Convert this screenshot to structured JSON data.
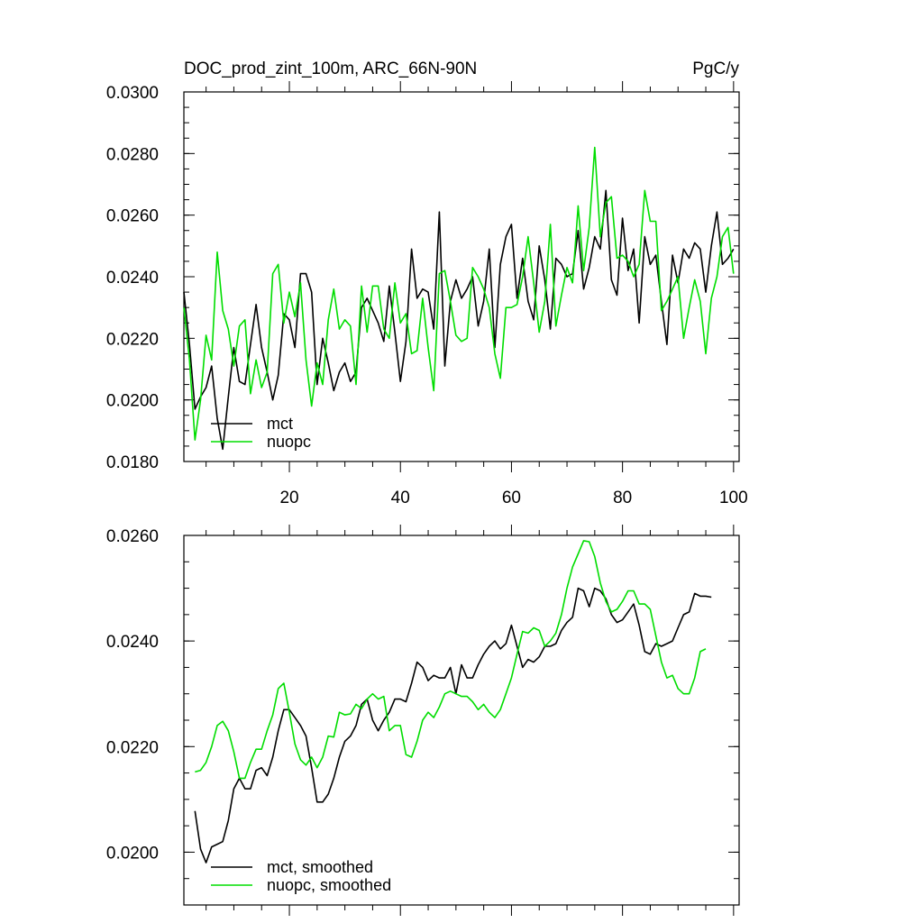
{
  "colors": {
    "mct": "#000000",
    "nuopc": "#00dd00",
    "axis": "#000000"
  },
  "chart_data": [
    {
      "type": "line",
      "title": "DOC_prod_zint_100m, ARC_66N-90N",
      "units": "PgC/y",
      "xlabel": "",
      "ylabel": "",
      "xlim": [
        1,
        101
      ],
      "ylim": [
        0.018,
        0.03
      ],
      "xticks": [
        20,
        40,
        60,
        80,
        100
      ],
      "xtick_labels": [
        "20",
        "40",
        "60",
        "80",
        "100"
      ],
      "yticks": [
        0.018,
        0.02,
        0.022,
        0.024,
        0.026,
        0.028,
        0.03
      ],
      "ytick_labels": [
        "0.0180",
        "0.0200",
        "0.0220",
        "0.0240",
        "0.0260",
        "0.0280",
        "0.0300"
      ],
      "legend_position": "bottom-left",
      "x_start": 1,
      "series": [
        {
          "name": "mct",
          "values": [
            0.0235,
            0.0218,
            0.0197,
            0.0201,
            0.0204,
            0.0211,
            0.0194,
            0.0184,
            0.0201,
            0.0217,
            0.0206,
            0.0205,
            0.0218,
            0.0231,
            0.0217,
            0.0209,
            0.02,
            0.0208,
            0.0228,
            0.0226,
            0.0217,
            0.0241,
            0.0241,
            0.0235,
            0.0205,
            0.022,
            0.0212,
            0.0203,
            0.0209,
            0.0212,
            0.0206,
            0.0209,
            0.023,
            0.0233,
            0.0229,
            0.0225,
            0.0219,
            0.0237,
            0.0222,
            0.0206,
            0.0219,
            0.0249,
            0.0233,
            0.0236,
            0.0235,
            0.0223,
            0.0261,
            0.0211,
            0.0232,
            0.0239,
            0.0233,
            0.0236,
            0.024,
            0.0224,
            0.0232,
            0.0249,
            0.0217,
            0.0244,
            0.0253,
            0.0257,
            0.0233,
            0.0246,
            0.0232,
            0.0226,
            0.025,
            0.0239,
            0.0223,
            0.0246,
            0.0244,
            0.024,
            0.0241,
            0.0255,
            0.0236,
            0.0243,
            0.0253,
            0.0249,
            0.0268,
            0.0239,
            0.0234,
            0.0259,
            0.0242,
            0.0249,
            0.0225,
            0.0253,
            0.0244,
            0.0247,
            0.0232,
            0.0218,
            0.0247,
            0.0238,
            0.0249,
            0.0246,
            0.0251,
            0.0249,
            0.0235,
            0.025,
            0.0261,
            0.0244,
            0.0246,
            0.0249
          ]
        },
        {
          "name": "nuopc",
          "values": [
            0.023,
            0.0213,
            0.0187,
            0.02,
            0.0221,
            0.0213,
            0.0248,
            0.0229,
            0.0223,
            0.0211,
            0.0224,
            0.0226,
            0.0202,
            0.0213,
            0.0204,
            0.0209,
            0.0241,
            0.0244,
            0.0225,
            0.0235,
            0.0227,
            0.0238,
            0.0213,
            0.0198,
            0.0212,
            0.0205,
            0.0226,
            0.0236,
            0.0223,
            0.0226,
            0.0224,
            0.0205,
            0.0237,
            0.0222,
            0.0237,
            0.0237,
            0.0223,
            0.022,
            0.0238,
            0.0225,
            0.0228,
            0.0215,
            0.0216,
            0.0233,
            0.0217,
            0.0203,
            0.0241,
            0.0242,
            0.0232,
            0.0221,
            0.0219,
            0.022,
            0.0243,
            0.024,
            0.0236,
            0.023,
            0.0215,
            0.0207,
            0.023,
            0.023,
            0.0231,
            0.024,
            0.0253,
            0.0238,
            0.0222,
            0.0232,
            0.0257,
            0.0224,
            0.0234,
            0.0243,
            0.0238,
            0.0263,
            0.0242,
            0.0256,
            0.0282,
            0.0253,
            0.0264,
            0.0266,
            0.0246,
            0.0247,
            0.0245,
            0.024,
            0.0244,
            0.0268,
            0.0258,
            0.0258,
            0.0229,
            0.0232,
            0.0236,
            0.024,
            0.022,
            0.023,
            0.0239,
            0.0232,
            0.0215,
            0.0233,
            0.024,
            0.0253,
            0.0256,
            0.0241
          ]
        }
      ]
    },
    {
      "type": "line",
      "title": "",
      "xlabel": "",
      "ylabel": "",
      "xlim": [
        1,
        101
      ],
      "ylim": [
        0.019,
        0.026
      ],
      "xticks": [
        20,
        40,
        60,
        80,
        100
      ],
      "xtick_labels": [],
      "yticks": [
        0.02,
        0.022,
        0.024,
        0.026
      ],
      "ytick_labels": [
        "0.0200",
        "0.0220",
        "0.0240",
        "0.0260"
      ],
      "legend_position": "bottom-left",
      "x_start": 3,
      "series": [
        {
          "name": "mct, smoothed",
          "values": [
            0.02078,
            0.02006,
            0.0198,
            0.0201,
            0.02015,
            0.0202,
            0.0206,
            0.0212,
            0.0214,
            0.0212,
            0.0212,
            0.02155,
            0.0216,
            0.02145,
            0.0218,
            0.0223,
            0.0227,
            0.0227,
            0.02255,
            0.0224,
            0.0222,
            0.0216,
            0.02095,
            0.02095,
            0.0211,
            0.0214,
            0.0218,
            0.0221,
            0.0222,
            0.0224,
            0.0228,
            0.0229,
            0.0225,
            0.0223,
            0.0225,
            0.02265,
            0.0229,
            0.0229,
            0.02285,
            0.0232,
            0.0236,
            0.0235,
            0.02325,
            0.02335,
            0.0233,
            0.0233,
            0.0235,
            0.023,
            0.02355,
            0.0233,
            0.0233,
            0.02355,
            0.02375,
            0.0239,
            0.024,
            0.02385,
            0.02395,
            0.0243,
            0.0239,
            0.0235,
            0.02365,
            0.0236,
            0.0237,
            0.0239,
            0.0239,
            0.02395,
            0.0242,
            0.02435,
            0.02445,
            0.025,
            0.02495,
            0.02465,
            0.025,
            0.02495,
            0.0248,
            0.0245,
            0.02435,
            0.0244,
            0.02455,
            0.0247,
            0.0243,
            0.0238,
            0.02375,
            0.02395,
            0.0239,
            0.02395,
            0.024,
            0.02425,
            0.0245,
            0.02455,
            0.0249,
            0.02485,
            0.02485,
            0.02483
          ]
        },
        {
          "name": "nuopc, smoothed",
          "values": [
            0.02152,
            0.02155,
            0.0217,
            0.022,
            0.0224,
            0.02248,
            0.0223,
            0.0219,
            0.0214,
            0.0214,
            0.0217,
            0.02195,
            0.02195,
            0.0223,
            0.0226,
            0.0231,
            0.0232,
            0.02265,
            0.02205,
            0.02175,
            0.02165,
            0.0218,
            0.0216,
            0.0218,
            0.0222,
            0.02218,
            0.02265,
            0.0226,
            0.02262,
            0.0228,
            0.02272,
            0.0229,
            0.023,
            0.0229,
            0.02295,
            0.0223,
            0.0224,
            0.0224,
            0.02185,
            0.0218,
            0.0221,
            0.0225,
            0.02265,
            0.02255,
            0.02275,
            0.023,
            0.02305,
            0.023,
            0.02295,
            0.02295,
            0.02285,
            0.0227,
            0.0228,
            0.02265,
            0.02255,
            0.0227,
            0.023,
            0.0233,
            0.02375,
            0.02418,
            0.02415,
            0.02425,
            0.0242,
            0.0239,
            0.024,
            0.02415,
            0.0245,
            0.025,
            0.0254,
            0.02565,
            0.0259,
            0.02588,
            0.0256,
            0.0251,
            0.02475,
            0.02455,
            0.0246,
            0.02475,
            0.02495,
            0.02495,
            0.0247,
            0.0247,
            0.0246,
            0.0241,
            0.0236,
            0.0233,
            0.02335,
            0.0231,
            0.023,
            0.023,
            0.0233,
            0.0238,
            0.02385
          ]
        }
      ]
    }
  ]
}
